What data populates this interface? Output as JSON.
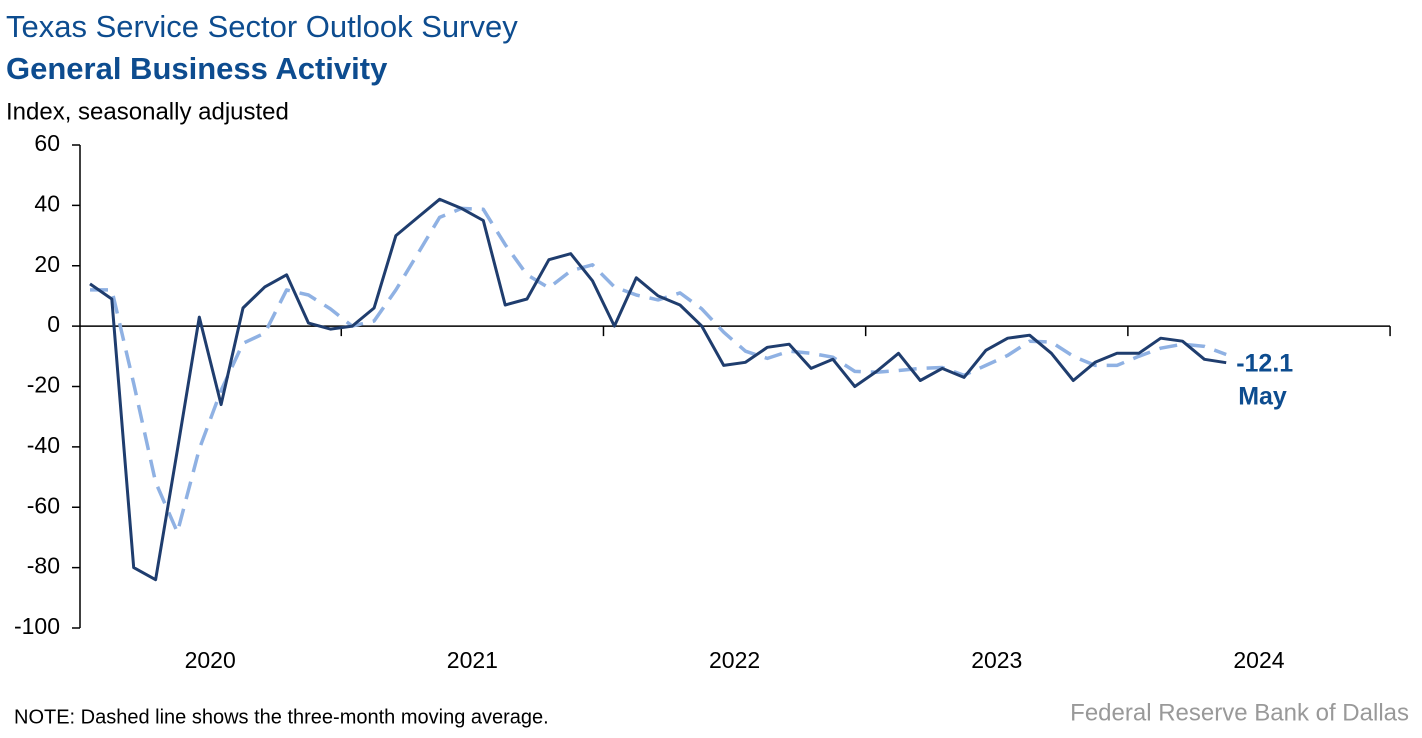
{
  "chart_data": {
    "type": "line",
    "title": "Texas Service Sector Outlook Survey",
    "subtitle": "General Business Activity",
    "y_label": "Index, seasonally adjusted",
    "note": "NOTE: Dashed line shows the three-month moving average.",
    "source": "Federal Reserve Bank of Dallas",
    "x": [
      "2020-01",
      "2020-02",
      "2020-03",
      "2020-04",
      "2020-05",
      "2020-06",
      "2020-07",
      "2020-08",
      "2020-09",
      "2020-10",
      "2020-11",
      "2020-12",
      "2021-01",
      "2021-02",
      "2021-03",
      "2021-04",
      "2021-05",
      "2021-06",
      "2021-07",
      "2021-08",
      "2021-09",
      "2021-10",
      "2021-11",
      "2021-12",
      "2022-01",
      "2022-02",
      "2022-03",
      "2022-04",
      "2022-05",
      "2022-06",
      "2022-07",
      "2022-08",
      "2022-09",
      "2022-10",
      "2022-11",
      "2022-12",
      "2023-01",
      "2023-02",
      "2023-03",
      "2023-04",
      "2023-05",
      "2023-06",
      "2023-07",
      "2023-08",
      "2023-09",
      "2023-10",
      "2023-11",
      "2023-12",
      "2024-01",
      "2024-02",
      "2024-03",
      "2024-04",
      "2024-05"
    ],
    "xlabels": [
      "2020",
      "2021",
      "2022",
      "2023",
      "2024"
    ],
    "series": [
      {
        "color": "#1f3d6e",
        "style": "solid",
        "values": [
          14,
          9,
          -80,
          -84,
          -41,
          3,
          -26,
          6,
          13,
          17,
          1,
          -1,
          0,
          6,
          30,
          36,
          42,
          39,
          35,
          7,
          9,
          22,
          24,
          15,
          0,
          16,
          10,
          7,
          0,
          -13,
          -12,
          -7,
          -6,
          -14,
          -11,
          -20,
          -15,
          -9,
          -18,
          -14,
          -17,
          -8,
          -4,
          -3,
          -9,
          -18,
          -12,
          -9,
          -9,
          -4,
          -5,
          -11,
          -12.1
        ]
      },
      {
        "color": "#8fb1e3",
        "style": "dashed",
        "values": [
          12,
          12,
          -19,
          -51.7,
          -68.3,
          -40.7,
          -21.3,
          -5.7,
          -2.3,
          12,
          10.3,
          5.7,
          0,
          1.7,
          12,
          24,
          36,
          39,
          38.7,
          27,
          17,
          12.7,
          18.3,
          20.3,
          13,
          10.3,
          8.7,
          11,
          5.7,
          -2,
          -8.3,
          -10.7,
          -8.3,
          -9,
          -10.3,
          -15,
          -15.3,
          -14.7,
          -14,
          -13.7,
          -16.3,
          -13,
          -9.7,
          -5,
          -5.3,
          -10,
          -13,
          -13,
          -10,
          -7.3,
          -6,
          -6.7,
          -9.4
        ]
      }
    ],
    "end_label": {
      "value": "-12.1",
      "period": "May"
    },
    "ylim": [
      -100,
      60
    ],
    "yticks": [
      -100,
      -80,
      -60,
      -40,
      -20,
      0,
      20,
      40,
      60
    ]
  }
}
